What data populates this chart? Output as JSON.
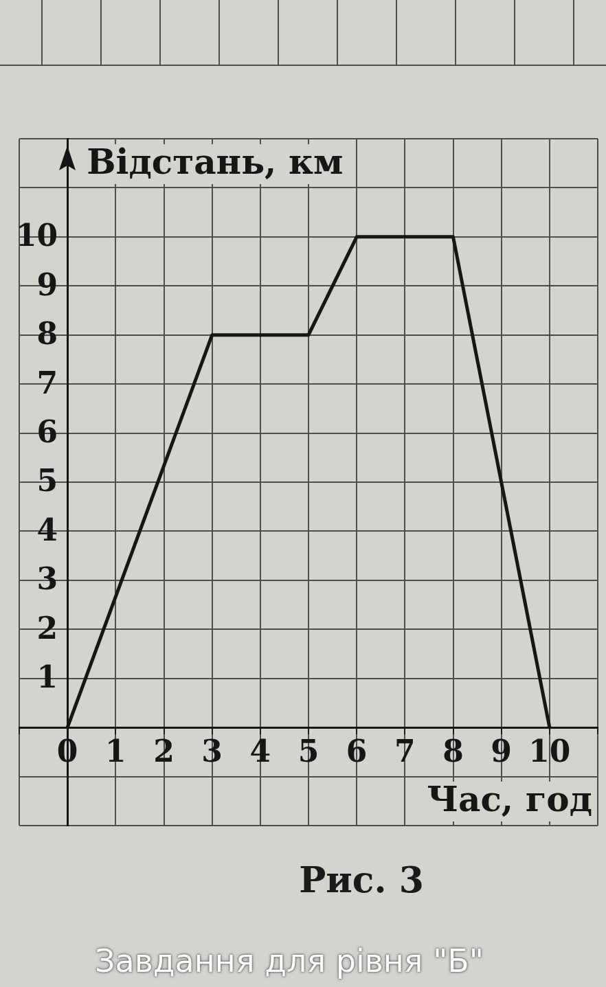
{
  "chart_data": {
    "type": "line",
    "x": [
      0,
      3,
      5,
      6,
      8,
      10
    ],
    "values": [
      0,
      8,
      8,
      10,
      10,
      0
    ],
    "color": "#161616",
    "xlabel": "Час, год",
    "ylabel": "Відстань, км",
    "xlim": [
      -1,
      11
    ],
    "ylim": [
      -2,
      12
    ],
    "xticks": [
      {
        "value": -1,
        "label": null
      },
      0,
      1,
      2,
      3,
      4,
      5,
      6,
      7,
      8,
      9,
      10,
      {
        "value": 11,
        "label": null
      }
    ],
    "yticks": [
      {
        "value": -2,
        "label": null
      },
      {
        "value": -1,
        "label": null
      },
      {
        "value": 0,
        "label": null
      },
      1,
      2,
      3,
      4,
      5,
      6,
      7,
      8,
      9,
      10,
      {
        "value": 11,
        "label": null
      },
      {
        "value": 12,
        "label": null
      }
    ],
    "grid": true,
    "marker": "none",
    "line_style": "solid",
    "annotations": [
      "Рис. 3",
      "Завдання для рівня \"Б\""
    ]
  }
}
